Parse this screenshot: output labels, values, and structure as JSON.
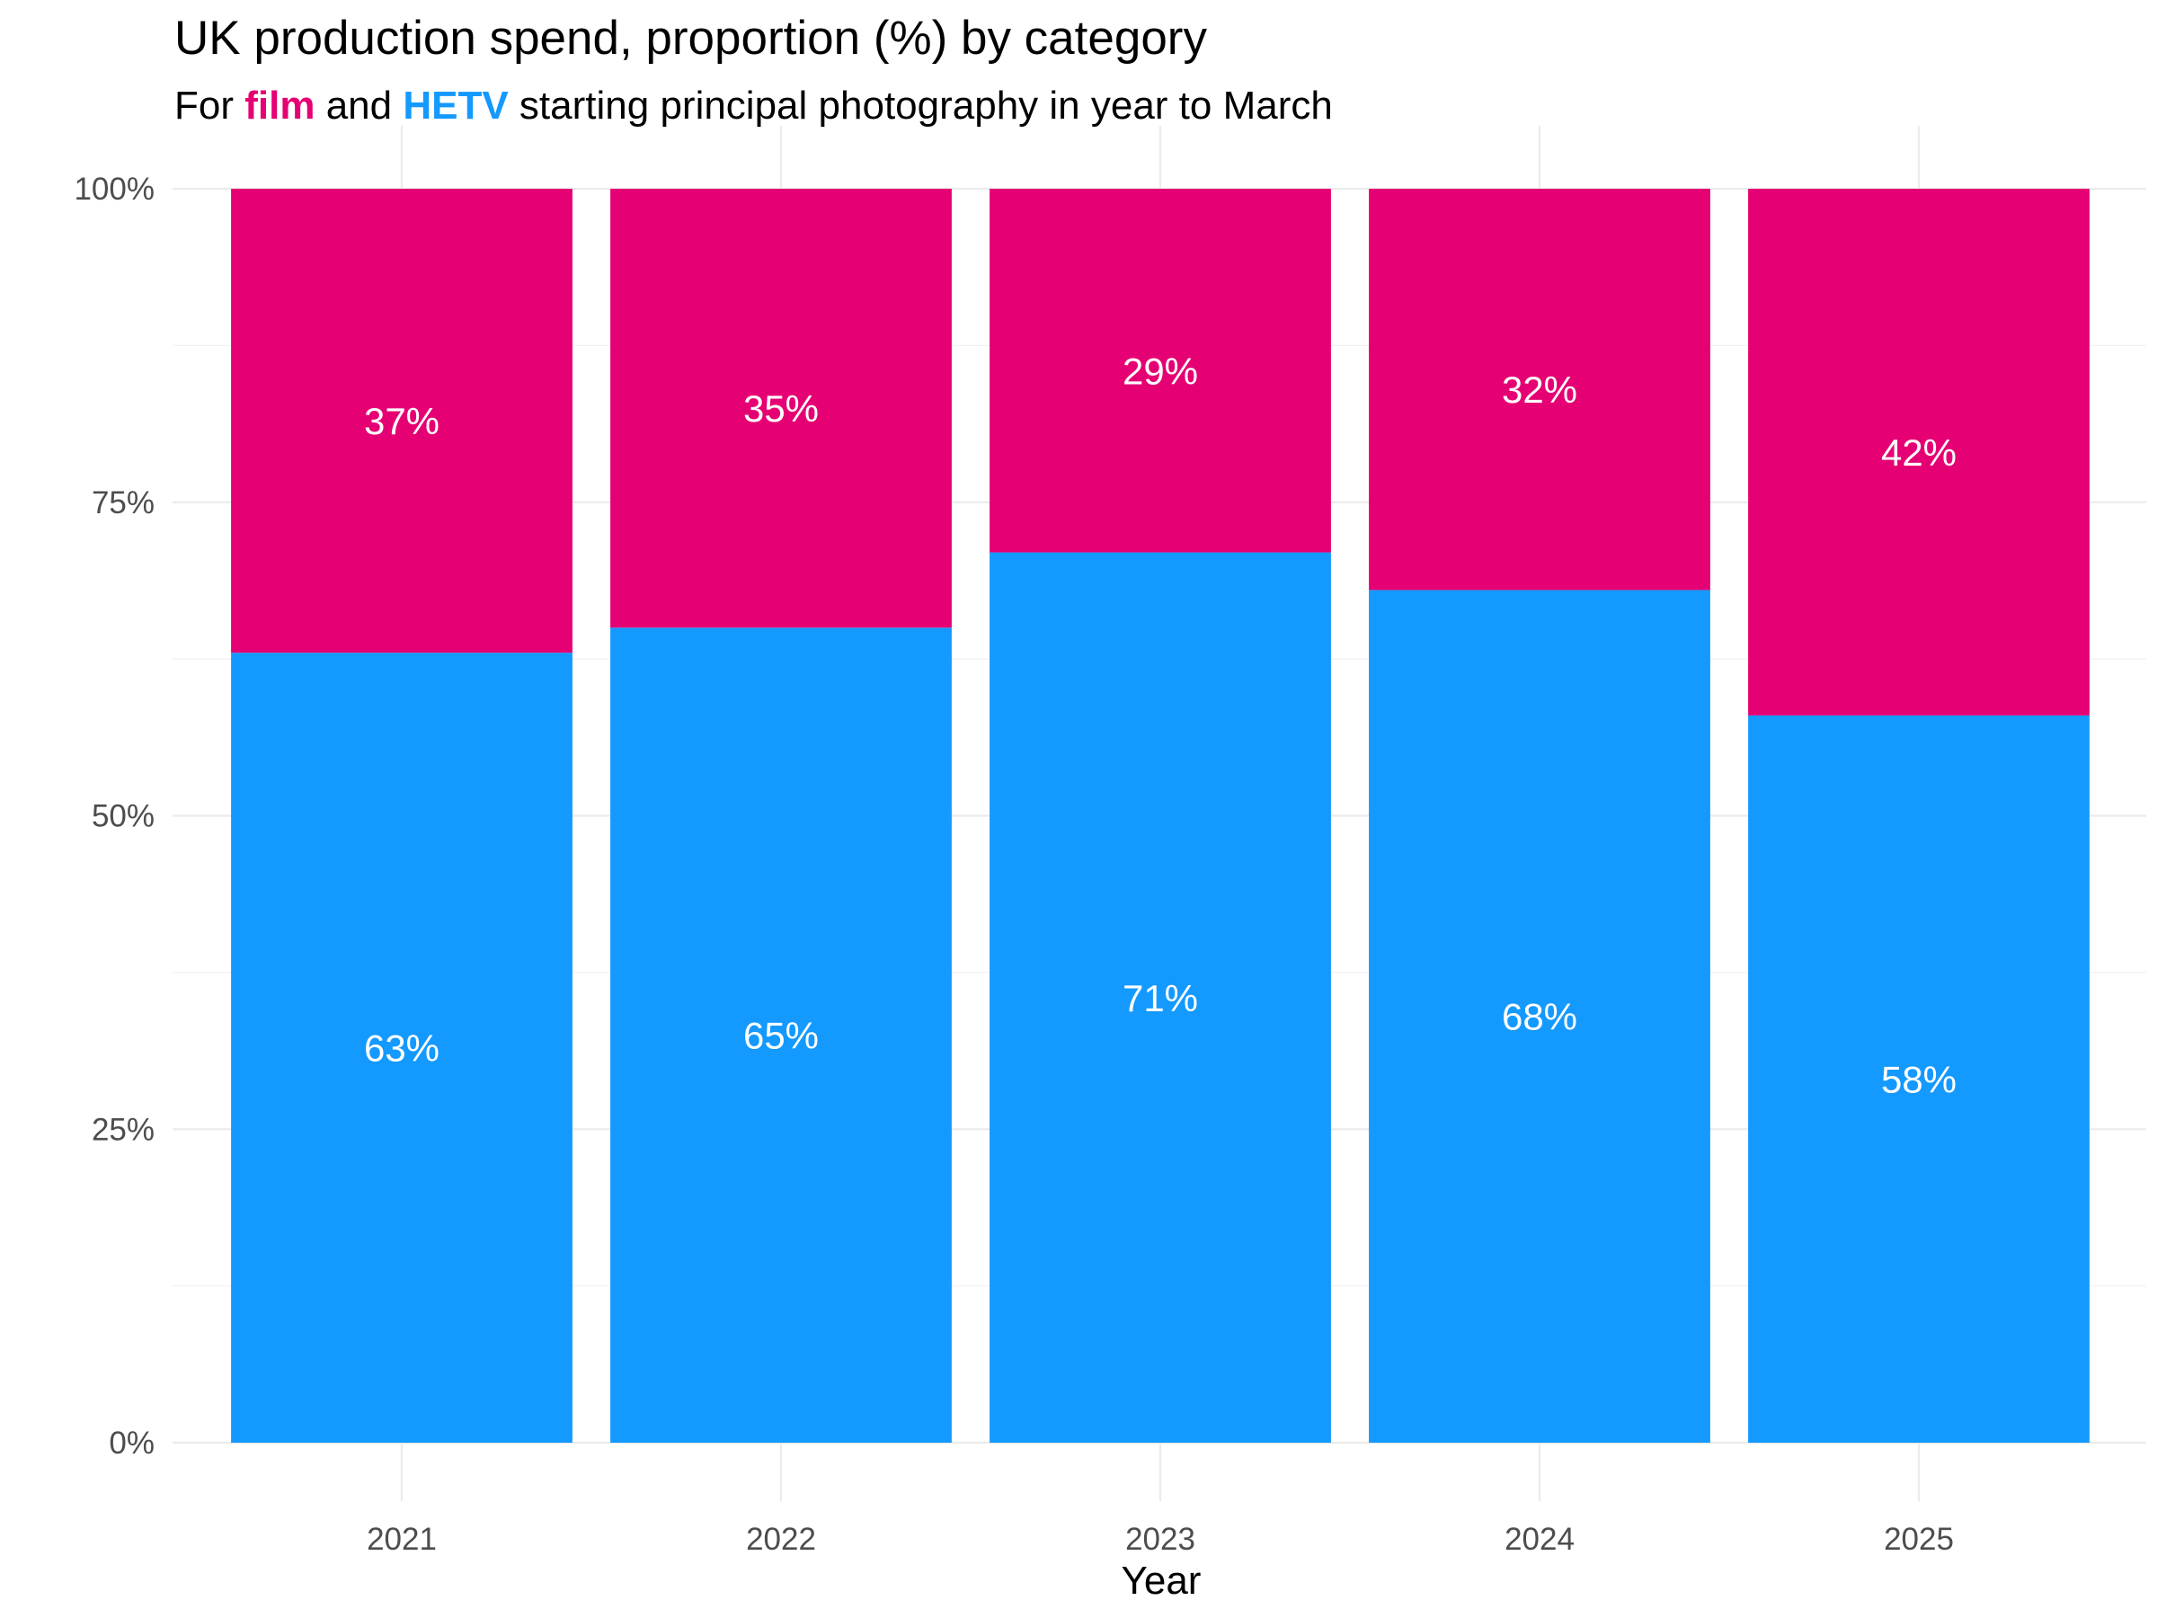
{
  "chart_data": {
    "type": "bar",
    "stacked": true,
    "title": "UK production spend, proportion (%) by category",
    "subtitle": {
      "prefix": "For ",
      "film": "film",
      "middle": " and ",
      "hetv": "HETV",
      "suffix": " starting principal photography in year to March"
    },
    "xlabel": "Year",
    "ylabel": "",
    "categories": [
      "2021",
      "2022",
      "2023",
      "2024",
      "2025"
    ],
    "series": [
      {
        "key": "hetv",
        "values": [
          63,
          65,
          71,
          68,
          58
        ],
        "labels": [
          "63%",
          "65%",
          "71%",
          "68%",
          "58%"
        ],
        "color": "#1499FF"
      },
      {
        "key": "film",
        "values": [
          37,
          35,
          29,
          32,
          42
        ],
        "labels": [
          "37%",
          "35%",
          "29%",
          "32%",
          "42%"
        ],
        "color": "#E50073"
      }
    ],
    "ylim": [
      0,
      100
    ],
    "yticks": [
      0,
      25,
      50,
      75,
      100
    ],
    "ytick_labels": [
      "0%",
      "25%",
      "50%",
      "75%",
      "100%"
    ],
    "grid": true,
    "legend": "none"
  }
}
